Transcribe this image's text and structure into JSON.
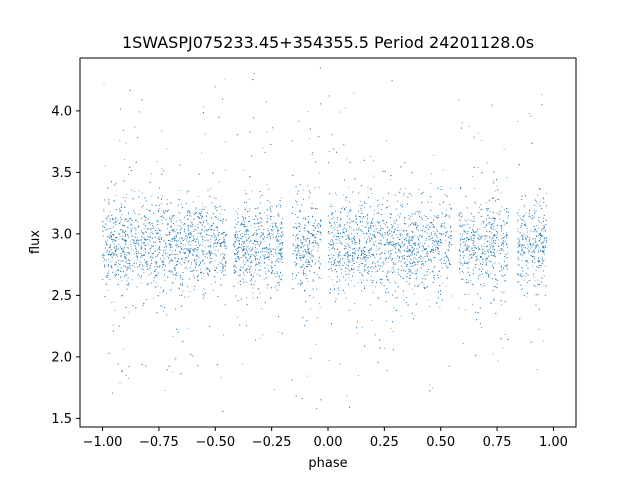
{
  "chart_data": {
    "type": "scatter",
    "title": "1SWASPJ075233.45+354355.5 Period 24201128.0s",
    "xlabel": "phase",
    "ylabel": "flux",
    "xlim": [
      -1.1,
      1.1
    ],
    "ylim": [
      1.43,
      4.43
    ],
    "x_ticks": [
      -1.0,
      -0.75,
      -0.5,
      -0.25,
      0.0,
      0.25,
      0.5,
      0.75,
      1.0
    ],
    "x_tick_labels": [
      "−1.00",
      "−0.75",
      "−0.50",
      "−0.25",
      "0.00",
      "0.25",
      "0.50",
      "0.75",
      "1.00"
    ],
    "y_ticks": [
      1.5,
      2.0,
      2.5,
      3.0,
      3.5,
      4.0
    ],
    "y_tick_labels": [
      "1.5",
      "2.0",
      "2.5",
      "3.0",
      "3.5",
      "4.0"
    ],
    "grid": false,
    "point_color": "#1f77b4",
    "series": [
      {
        "phase_range": [
          -1.0,
          1.0
        ],
        "flux_center": 2.9,
        "flux_min": 1.55,
        "flux_max": 4.35,
        "data_gaps": [
          [
            -0.45,
            -0.42
          ],
          [
            -0.2,
            -0.16
          ],
          [
            -0.03,
            0.0
          ],
          [
            0.55,
            0.58
          ],
          [
            0.8,
            0.84
          ],
          [
            0.97,
            1.0
          ]
        ]
      }
    ]
  }
}
